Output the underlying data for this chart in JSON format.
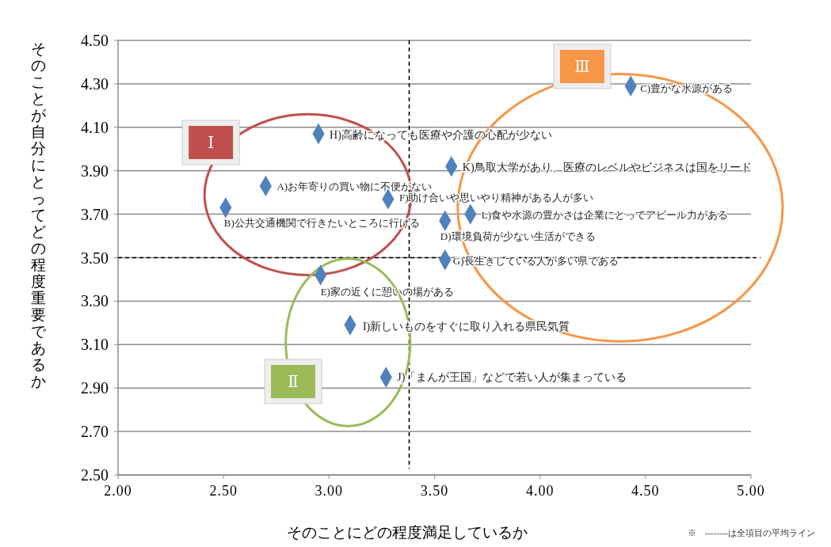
{
  "chart_data": {
    "type": "scatter",
    "xlabel": "そのことにどの程度満足しているか",
    "ylabel": "そのことが自分にとってどの程度重要であるか",
    "series": [
      {
        "color": "#4f81bd",
        "x": [
          2.95,
          2.7,
          3.28,
          2.51,
          4.43,
          3.58,
          3.67,
          3.55,
          3.55,
          2.96,
          3.1,
          3.27
        ],
        "values": [
          4.07,
          3.83,
          3.77,
          3.73,
          4.29,
          3.92,
          3.7,
          3.67,
          3.49,
          3.42,
          3.19,
          2.95
        ]
      }
    ],
    "marker": "diamond",
    "xlim": [
      2,
      5
    ],
    "xticks": [
      {
        "value": 2,
        "label": "2.00"
      },
      {
        "value": 2.5,
        "label": "2.50"
      },
      {
        "value": 3,
        "label": "3.00"
      },
      {
        "value": 3.5,
        "label": "3.50"
      },
      {
        "value": 4,
        "label": "4.00"
      },
      {
        "value": 4.5,
        "label": "4.50"
      },
      {
        "value": 5,
        "label": "5.00"
      }
    ],
    "ylim": [
      2.5,
      4.5
    ],
    "yticks": [
      {
        "value": 2.5,
        "label": "2.50"
      },
      {
        "value": 2.7,
        "label": "2.70"
      },
      {
        "value": 2.9,
        "label": "2.90"
      },
      {
        "value": 3.1,
        "label": "3.10"
      },
      {
        "value": 3.3,
        "label": "3.30"
      },
      {
        "value": 3.5,
        "label": "3.50"
      },
      {
        "value": 3.7,
        "label": "3.70"
      },
      {
        "value": 3.9,
        "label": "3.90"
      },
      {
        "value": 4.1,
        "label": "4.10"
      },
      {
        "value": 4.3,
        "label": "4.30"
      },
      {
        "value": 4.5,
        "label": "4.50"
      }
    ],
    "grid": "y",
    "ref_lines": [
      {
        "axis": "x",
        "value": 3.38,
        "line_style": "dashed",
        "color": "#000000"
      },
      {
        "axis": "y",
        "value": 3.5,
        "line_style": "dashed",
        "color": "#000000"
      }
    ],
    "annotations": [
      {
        "text": "H)高齢になっても医療や介護の心配が少ない",
        "x": 2.95,
        "y": 4.07
      },
      {
        "text": "A)お年寄りの買い物に不便がない",
        "x": 2.7,
        "y": 3.83
      },
      {
        "text": "F)助け合いや思いやり精神がある人が多い",
        "x": 3.28,
        "y": 3.77
      },
      {
        "text": "B)公共交通機関で行きたいところに行ける",
        "x": 2.51,
        "y": 3.73
      },
      {
        "text": "C)豊かな水源がある",
        "x": 4.43,
        "y": 4.29
      },
      {
        "text": "K)鳥取大学があり、医療のレベルやビジネスは国をリード",
        "x": 3.58,
        "y": 3.92
      },
      {
        "text": "L)食や水源の豊かさは企業にとってアピール力がある",
        "x": 3.67,
        "y": 3.7
      },
      {
        "text": "D)環境負荷が少ない生活ができる",
        "x": 3.55,
        "y": 3.67
      },
      {
        "text": "G)長生きしている人が多い県である",
        "x": 3.55,
        "y": 3.49
      },
      {
        "text": "E)家の近くに憩いの場がある",
        "x": 2.96,
        "y": 3.42
      },
      {
        "text": "I)新しいものをすぐに取り入れる県民気質",
        "x": 3.1,
        "y": 3.19
      },
      {
        "text": "J)「まんが王国」などで若い人が集まっている",
        "x": 3.27,
        "y": 2.95
      },
      "Ⅰ",
      "Ⅱ",
      "Ⅲ",
      "※　--------は全項目の平均ライン"
    ]
  }
}
